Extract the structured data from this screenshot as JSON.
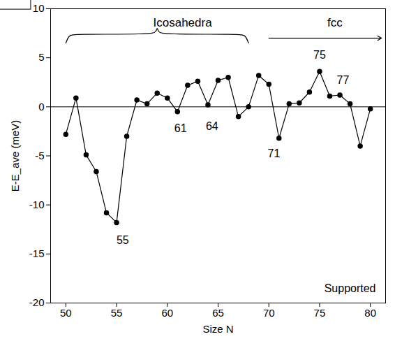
{
  "chart_data": {
    "type": "line",
    "x_label": "Size N",
    "y_label": "E-E_ave (meV)",
    "x": [
      50,
      51,
      52,
      53,
      54,
      55,
      56,
      57,
      58,
      59,
      60,
      61,
      62,
      63,
      64,
      65,
      66,
      67,
      68,
      69,
      70,
      71,
      72,
      73,
      74,
      75,
      76,
      77,
      78,
      79,
      80
    ],
    "values": [
      -2.8,
      0.9,
      -4.9,
      -6.6,
      -10.8,
      -11.8,
      -3.0,
      0.7,
      0.3,
      1.4,
      0.9,
      -0.5,
      2.2,
      2.6,
      0.2,
      2.7,
      3.0,
      -1.0,
      0.0,
      3.2,
      2.3,
      -3.2,
      0.3,
      0.4,
      1.5,
      3.6,
      1.1,
      1.2,
      0.3,
      -4.0,
      -0.2
    ],
    "color": "#000000",
    "marker": "circle",
    "line_style": "solid",
    "xlim": [
      48.5,
      81.5
    ],
    "xticks": [
      50,
      55,
      60,
      65,
      70,
      75,
      80
    ],
    "ylim": [
      -20,
      10
    ],
    "yticks": [
      -20,
      -15,
      -10,
      -5,
      0,
      5,
      10
    ],
    "reference_line": {
      "y": 0
    },
    "annotations": [
      {
        "text": "55",
        "x": 55.6,
        "y": -13.6
      },
      {
        "text": "61",
        "x": 61.3,
        "y": -2.2
      },
      {
        "text": "64",
        "x": 64.4,
        "y": -2.0
      },
      {
        "text": "71",
        "x": 70.5,
        "y": -4.8
      },
      {
        "text": "75",
        "x": 75.0,
        "y": 5.3
      },
      {
        "text": "77",
        "x": 77.3,
        "y": 2.7
      },
      {
        "text": "Icosahedra",
        "x": 61.5,
        "y": 8.6,
        "x_range": [
          50,
          68
        ]
      },
      {
        "text": "fcc",
        "x": 76.5,
        "y": 8.6,
        "x_range": [
          70,
          81.5
        ]
      },
      {
        "text": "Supported",
        "x": 78,
        "y": -18.5
      }
    ]
  }
}
